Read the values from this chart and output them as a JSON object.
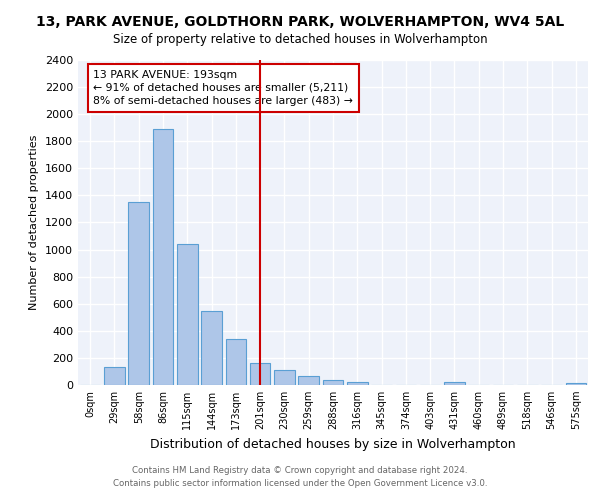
{
  "title": "13, PARK AVENUE, GOLDTHORN PARK, WOLVERHAMPTON, WV4 5AL",
  "subtitle": "Size of property relative to detached houses in Wolverhampton",
  "xlabel": "Distribution of detached houses by size in Wolverhampton",
  "ylabel": "Number of detached properties",
  "categories": [
    "0sqm",
    "29sqm",
    "58sqm",
    "86sqm",
    "115sqm",
    "144sqm",
    "173sqm",
    "201sqm",
    "230sqm",
    "259sqm",
    "288sqm",
    "316sqm",
    "345sqm",
    "374sqm",
    "403sqm",
    "431sqm",
    "460sqm",
    "489sqm",
    "518sqm",
    "546sqm",
    "575sqm"
  ],
  "values": [
    0,
    130,
    1350,
    1890,
    1040,
    545,
    340,
    165,
    110,
    65,
    35,
    20,
    0,
    0,
    0,
    20,
    0,
    0,
    0,
    0,
    15
  ],
  "bar_color": "#aec6e8",
  "bar_edge_color": "#5a9fd4",
  "bar_width": 0.85,
  "ylim": [
    0,
    2400
  ],
  "yticks": [
    0,
    200,
    400,
    600,
    800,
    1000,
    1200,
    1400,
    1600,
    1800,
    2000,
    2200,
    2400
  ],
  "vline_x": 7.0,
  "vline_color": "#cc0000",
  "annotation_title": "13 PARK AVENUE: 193sqm",
  "annotation_line1": "← 91% of detached houses are smaller (5,211)",
  "annotation_line2": "8% of semi-detached houses are larger (483) →",
  "annotation_box_color": "#cc0000",
  "background_color": "#eef2fa",
  "grid_color": "#ffffff",
  "footer1": "Contains HM Land Registry data © Crown copyright and database right 2024.",
  "footer2": "Contains public sector information licensed under the Open Government Licence v3.0."
}
